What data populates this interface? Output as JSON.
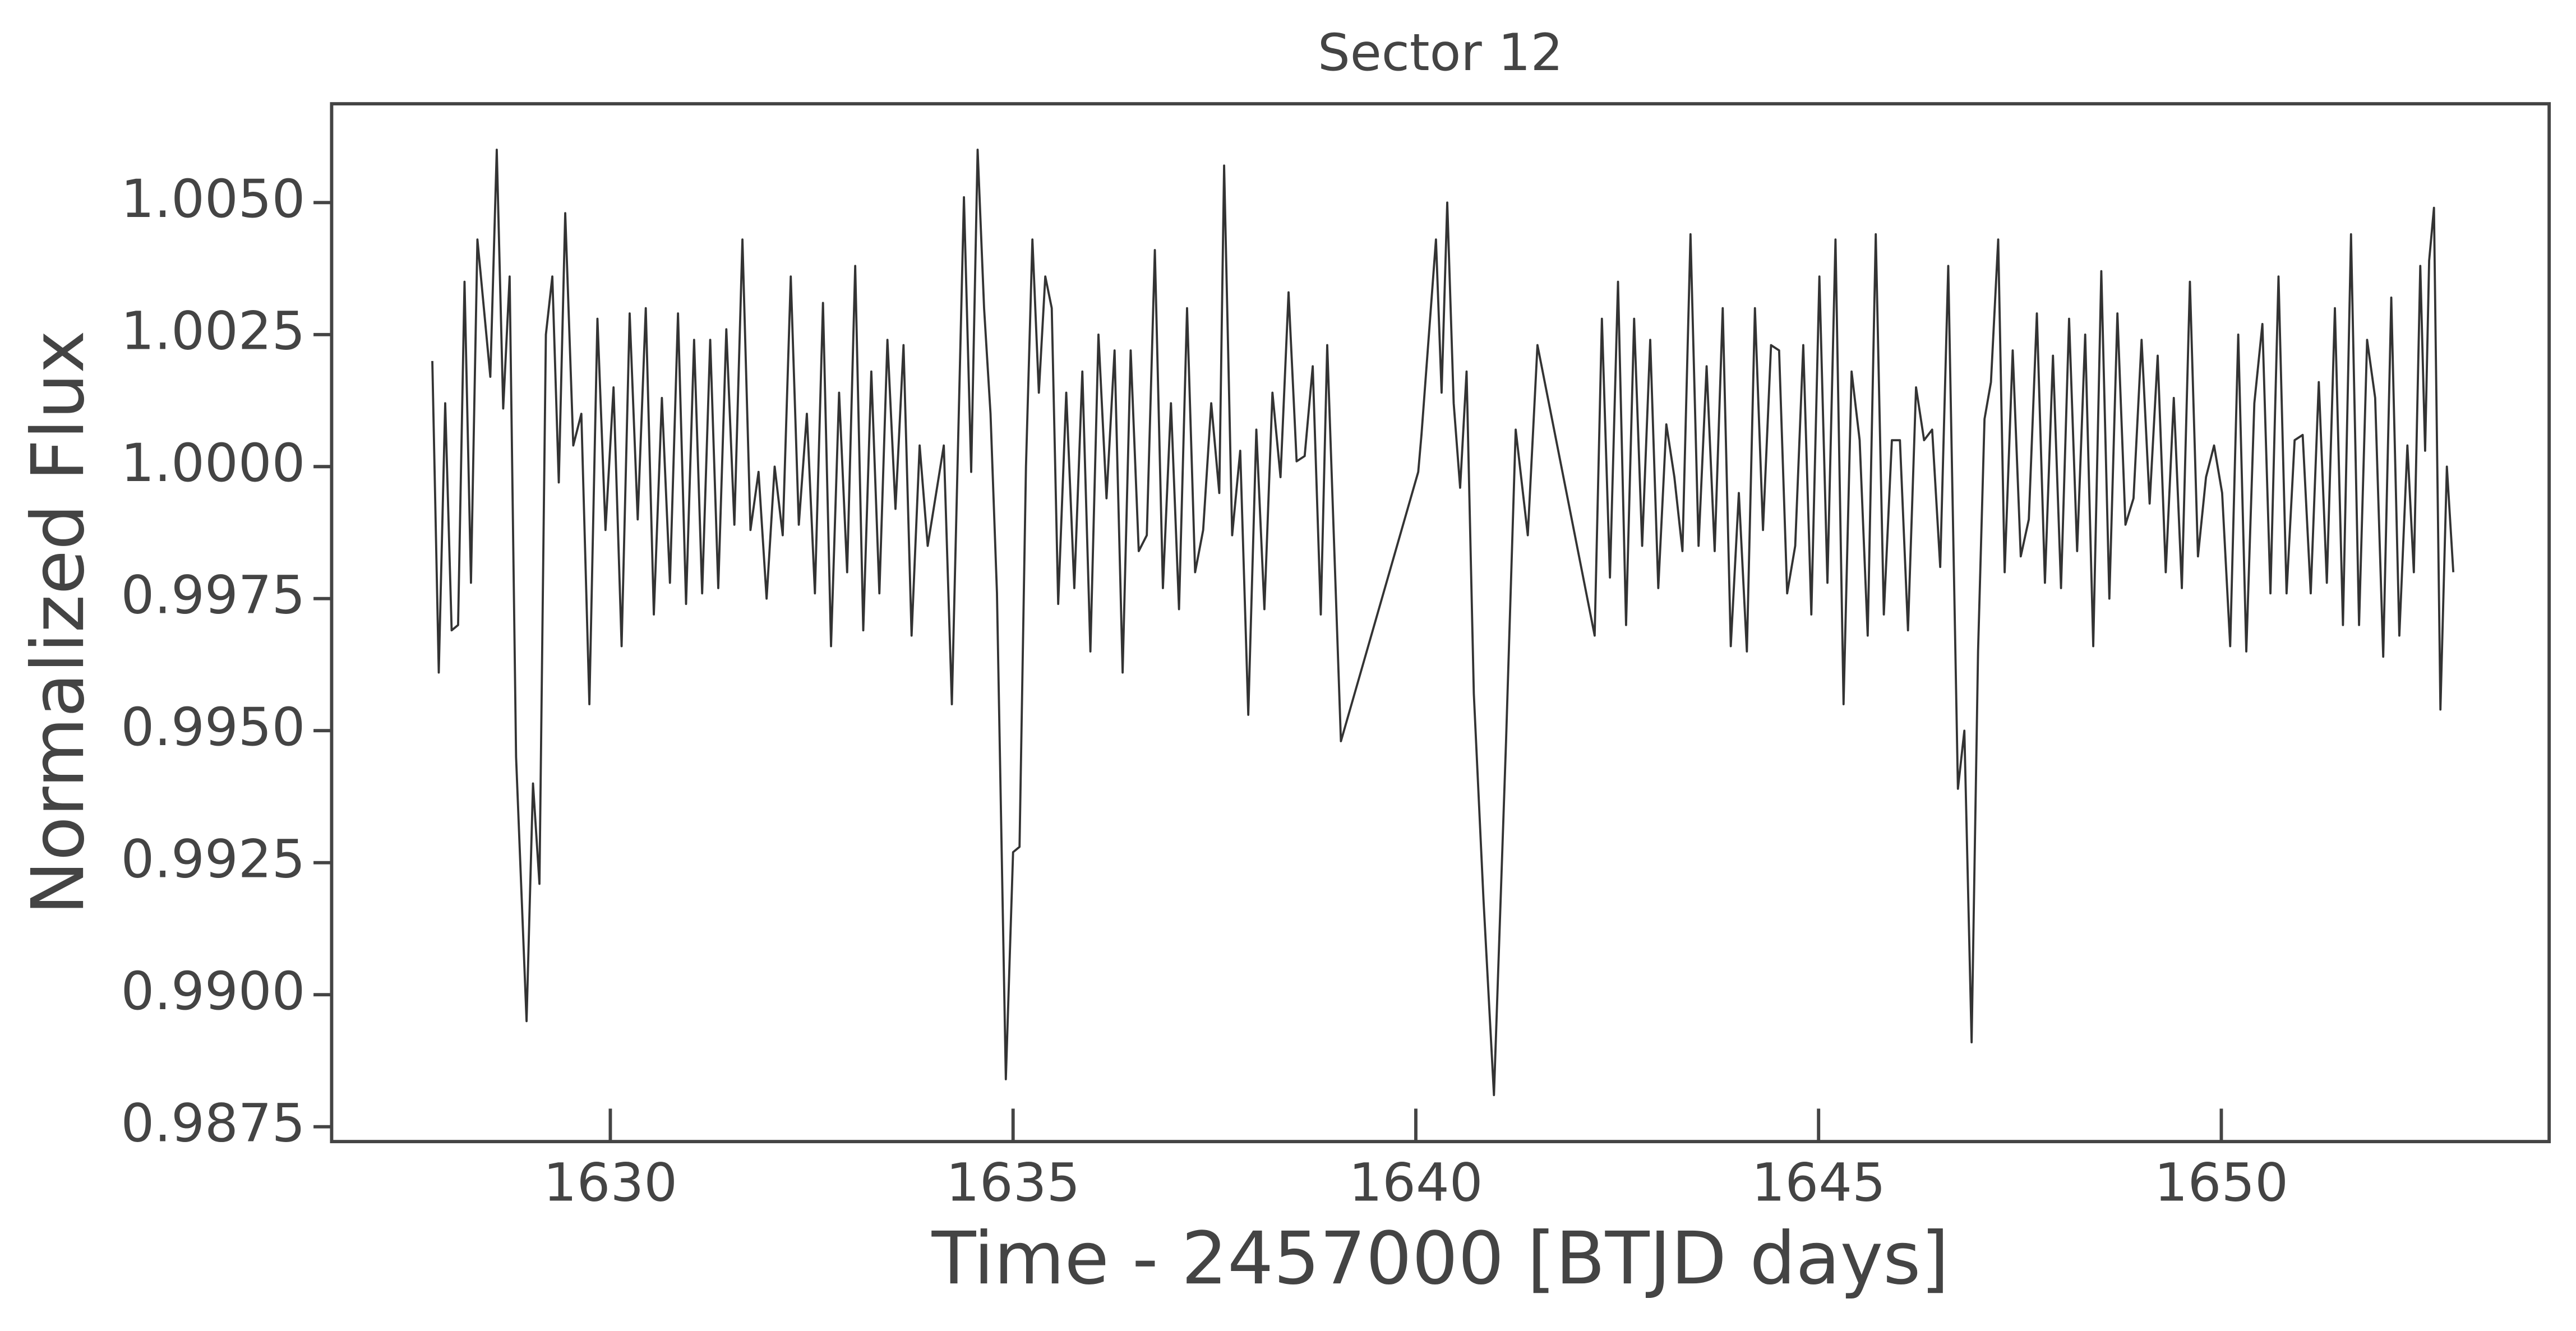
{
  "chart_data": {
    "type": "line",
    "title": "Sector 12",
    "xlabel": "Time - 2457000 [BTJD days]",
    "ylabel": "Normalized Flux",
    "color": "#333333",
    "xlim": [
      1626.54,
      1654.07
    ],
    "ylim": [
      0.98722,
      1.00687
    ],
    "xticks": [
      1630,
      1635,
      1640,
      1645,
      1650
    ],
    "yticks": [
      {
        "value": 0.9875,
        "label": "0.9875"
      },
      {
        "value": 0.99,
        "label": "0.9900"
      },
      {
        "value": 0.9925,
        "label": "0.9925"
      },
      {
        "value": 0.995,
        "label": "0.9950"
      },
      {
        "value": 0.9975,
        "label": "0.9975"
      },
      {
        "value": 1.0,
        "label": "1.0000"
      },
      {
        "value": 1.0025,
        "label": "1.0025"
      },
      {
        "value": 1.005,
        "label": "1.0050"
      }
    ],
    "x": [
      1627.79,
      1627.87,
      1627.95,
      1628.03,
      1628.11,
      1628.19,
      1628.27,
      1628.35,
      1628.43,
      1628.51,
      1628.59,
      1628.67,
      1628.75,
      1628.83,
      1628.96,
      1629.04,
      1629.12,
      1629.2,
      1629.28,
      1629.36,
      1629.44,
      1629.54,
      1629.64,
      1629.74,
      1629.84,
      1629.94,
      1630.04,
      1630.14,
      1630.24,
      1630.34,
      1630.44,
      1630.54,
      1630.64,
      1630.74,
      1630.84,
      1630.94,
      1631.04,
      1631.14,
      1631.24,
      1631.34,
      1631.44,
      1631.54,
      1631.64,
      1631.74,
      1631.84,
      1631.94,
      1632.04,
      1632.14,
      1632.24,
      1632.34,
      1632.44,
      1632.54,
      1632.64,
      1632.74,
      1632.84,
      1632.94,
      1633.04,
      1633.14,
      1633.24,
      1633.34,
      1633.44,
      1633.54,
      1633.64,
      1633.74,
      1633.84,
      1633.94,
      1634.14,
      1634.24,
      1634.39,
      1634.48,
      1634.56,
      1634.64,
      1634.72,
      1634.8,
      1634.91,
      1635.0,
      1635.08,
      1635.16,
      1635.24,
      1635.32,
      1635.4,
      1635.48,
      1635.56,
      1635.66,
      1635.76,
      1635.86,
      1635.96,
      1636.06,
      1636.16,
      1636.26,
      1636.36,
      1636.46,
      1636.56,
      1636.66,
      1636.76,
      1636.86,
      1636.96,
      1637.06,
      1637.16,
      1637.26,
      1637.36,
      1637.46,
      1637.56,
      1637.62,
      1637.72,
      1637.82,
      1637.92,
      1638.02,
      1638.12,
      1638.22,
      1638.32,
      1638.42,
      1638.52,
      1638.62,
      1638.72,
      1638.82,
      1638.9,
      1639.07,
      1640.03,
      1640.07,
      1640.25,
      1640.32,
      1640.39,
      1640.47,
      1640.55,
      1640.63,
      1640.72,
      1640.84,
      1640.97,
      1641.12,
      1641.24,
      1641.39,
      1641.51,
      1642.22,
      1642.31,
      1642.41,
      1642.51,
      1642.61,
      1642.71,
      1642.81,
      1642.91,
      1643.01,
      1643.11,
      1643.21,
      1643.31,
      1643.41,
      1643.51,
      1643.61,
      1643.71,
      1643.81,
      1643.91,
      1644.01,
      1644.11,
      1644.21,
      1644.31,
      1644.41,
      1644.51,
      1644.61,
      1644.71,
      1644.81,
      1644.91,
      1645.01,
      1645.11,
      1645.21,
      1645.31,
      1645.41,
      1645.51,
      1645.61,
      1645.71,
      1645.81,
      1645.91,
      1646.01,
      1646.11,
      1646.21,
      1646.31,
      1646.41,
      1646.51,
      1646.61,
      1646.73,
      1646.81,
      1646.9,
      1646.98,
      1647.06,
      1647.14,
      1647.23,
      1647.31,
      1647.41,
      1647.51,
      1647.61,
      1647.71,
      1647.81,
      1647.91,
      1648.01,
      1648.11,
      1648.21,
      1648.31,
      1648.41,
      1648.51,
      1648.61,
      1648.71,
      1648.81,
      1648.91,
      1649.01,
      1649.11,
      1649.21,
      1649.31,
      1649.41,
      1649.51,
      1649.61,
      1649.71,
      1649.81,
      1649.91,
      1650.01,
      1650.11,
      1650.21,
      1650.31,
      1650.41,
      1650.51,
      1650.61,
      1650.71,
      1650.81,
      1650.91,
      1651.01,
      1651.11,
      1651.21,
      1651.31,
      1651.41,
      1651.51,
      1651.61,
      1651.71,
      1651.81,
      1651.91,
      1652.01,
      1652.11,
      1652.21,
      1652.31,
      1652.39,
      1652.47,
      1652.53,
      1652.58,
      1652.64,
      1652.72,
      1652.8,
      1652.88
    ],
    "values": [
      1.002,
      0.9961,
      1.0012,
      0.9969,
      0.997,
      1.0035,
      0.9978,
      1.0043,
      1.003,
      1.0017,
      1.006,
      1.0011,
      1.0036,
      0.9945,
      0.9895,
      0.994,
      0.9921,
      1.0025,
      1.0036,
      0.9997,
      1.0048,
      1.0004,
      1.001,
      0.9955,
      1.0028,
      0.9988,
      1.0015,
      0.9966,
      1.0029,
      0.999,
      1.003,
      0.9972,
      1.0013,
      0.9978,
      1.0029,
      0.9974,
      1.0024,
      0.9976,
      1.0024,
      0.9977,
      1.0026,
      0.9989,
      1.0043,
      0.9988,
      0.9999,
      0.9975,
      1.0,
      0.9987,
      1.0036,
      0.9989,
      1.001,
      0.9976,
      1.0031,
      0.9966,
      1.0014,
      0.998,
      1.0038,
      0.9969,
      1.0018,
      0.9976,
      1.0024,
      0.9992,
      1.0023,
      0.9968,
      1.0004,
      0.9985,
      1.0004,
      0.9955,
      1.0051,
      0.9999,
      1.006,
      1.003,
      1.001,
      0.9976,
      0.9884,
      0.9927,
      0.9928,
      1.0,
      1.0043,
      1.0014,
      1.0036,
      1.003,
      0.9974,
      1.0014,
      0.9977,
      1.0018,
      0.9965,
      1.0025,
      0.9994,
      1.0022,
      0.9961,
      1.0022,
      0.9984,
      0.9987,
      1.0041,
      0.9977,
      1.0012,
      0.9973,
      1.003,
      0.998,
      0.9988,
      1.0012,
      0.9995,
      1.0057,
      0.9987,
      1.0003,
      0.9953,
      1.0007,
      0.9973,
      1.0014,
      0.9998,
      1.0033,
      1.0001,
      1.0002,
      1.0019,
      0.9972,
      1.0023,
      0.9948,
      0.9999,
      1.0006,
      1.0043,
      1.0014,
      1.005,
      1.0012,
      0.9996,
      1.0018,
      0.9957,
      0.9918,
      0.9881,
      0.9948,
      1.0007,
      0.9987,
      1.0023,
      0.9968,
      1.0028,
      0.9979,
      1.0035,
      0.997,
      1.0028,
      0.9985,
      1.0024,
      0.9977,
      1.0008,
      0.9998,
      0.9984,
      1.0044,
      0.9985,
      1.0019,
      0.9984,
      1.003,
      0.9966,
      0.9995,
      0.9965,
      1.003,
      0.9988,
      1.0023,
      1.0022,
      0.9976,
      0.9985,
      1.0023,
      0.9972,
      1.0036,
      0.9978,
      1.0043,
      0.9955,
      1.0018,
      1.0005,
      0.9968,
      1.0044,
      0.9972,
      1.0005,
      1.0005,
      0.9969,
      1.0015,
      1.0005,
      1.0007,
      0.9981,
      1.0038,
      0.9939,
      0.995,
      0.9891,
      0.9965,
      1.0009,
      1.0016,
      1.0043,
      0.998,
      1.0022,
      0.9983,
      0.999,
      1.0029,
      0.9978,
      1.0021,
      0.9977,
      1.0028,
      0.9984,
      1.0025,
      0.9966,
      1.0037,
      0.9975,
      1.0029,
      0.9989,
      0.9994,
      1.0024,
      0.9993,
      1.0021,
      0.998,
      1.0013,
      0.9977,
      1.0035,
      0.9983,
      0.9998,
      1.0004,
      0.9995,
      0.9966,
      1.0025,
      0.9965,
      1.0012,
      1.0027,
      0.9976,
      1.0036,
      0.9976,
      1.0005,
      1.0006,
      0.9976,
      1.0016,
      0.9978,
      1.003,
      0.997,
      1.0044,
      0.997,
      1.0024,
      1.0013,
      0.9964,
      1.0032,
      0.9968,
      1.0004,
      0.998,
      1.0038,
      1.0003,
      1.0039,
      1.0049,
      0.9954,
      1.0,
      0.998
    ]
  }
}
